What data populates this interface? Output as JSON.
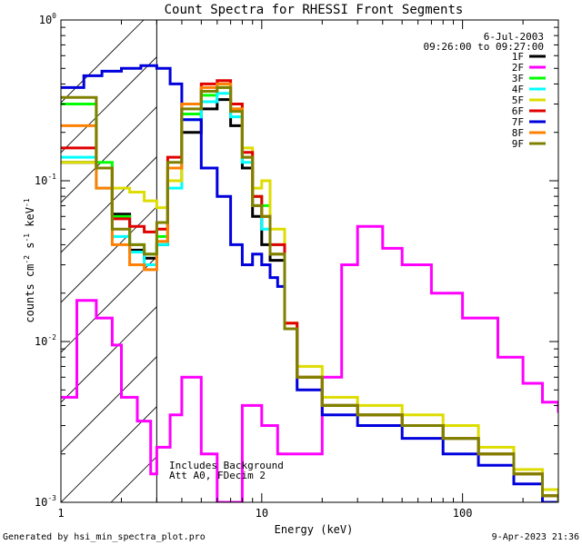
{
  "chart_data": {
    "type": "line",
    "title": "Count Spectra for RHESSI Front Segments",
    "xlabel": "Energy (keV)",
    "ylabel_parts": [
      "counts cm",
      "-2",
      " s",
      "-1",
      " keV",
      "-1"
    ],
    "x_scale": "log",
    "y_scale": "log",
    "xlim": [
      1,
      300
    ],
    "ylim": [
      0.001,
      1
    ],
    "x_ticks": [
      {
        "value": 1,
        "label": "1"
      },
      {
        "value": 10,
        "label": "10"
      },
      {
        "value": 100,
        "label": "100"
      }
    ],
    "y_ticks": [
      {
        "value": 1,
        "base": "10",
        "exp": "0"
      },
      {
        "value": 0.1,
        "base": "10",
        "exp": "-1"
      },
      {
        "value": 0.01,
        "base": "10",
        "exp": "-2"
      },
      {
        "value": 0.001,
        "base": "10",
        "exp": "-3"
      }
    ],
    "hatched_region": [
      1,
      3
    ],
    "legend_position": "top-right",
    "date": "6-Jul-2003",
    "time_range": "09:26:00 to 09:27:00",
    "annotations": [
      "Includes Background",
      "Att A0, FDecim 2"
    ],
    "footer_left": "Generated by hsi_min_spectra_plot.pro",
    "footer_right": "9-Apr-2023 21:36",
    "series": [
      {
        "name": "1F",
        "color": "#000000",
        "points": [
          [
            1,
            0.13
          ],
          [
            1.5,
            0.12
          ],
          [
            1.8,
            0.062
          ],
          [
            2.2,
            0.037
          ],
          [
            2.6,
            0.033
          ],
          [
            3,
            0.04
          ],
          [
            3.4,
            0.1
          ],
          [
            4,
            0.2
          ],
          [
            5,
            0.28
          ],
          [
            6,
            0.32
          ],
          [
            7,
            0.22
          ],
          [
            8,
            0.12
          ],
          [
            9,
            0.06
          ],
          [
            10,
            0.04
          ],
          [
            11,
            0.032
          ],
          [
            13,
            0.012
          ],
          [
            15,
            0.006
          ],
          [
            20,
            0.004
          ],
          [
            30,
            0.0035
          ],
          [
            50,
            0.003
          ],
          [
            80,
            0.0025
          ],
          [
            120,
            0.002
          ],
          [
            180,
            0.0015
          ],
          [
            250,
            0.0011
          ],
          [
            300,
            0.001
          ]
        ]
      },
      {
        "name": "2F",
        "color": "#ff00ff",
        "points": [
          [
            1,
            0.0045
          ],
          [
            1.2,
            0.018
          ],
          [
            1.5,
            0.014
          ],
          [
            1.8,
            0.0095
          ],
          [
            2,
            0.0045
          ],
          [
            2.4,
            0.0032
          ],
          [
            2.8,
            0.0015
          ],
          [
            3,
            0.0022
          ],
          [
            3.5,
            0.0035
          ],
          [
            4,
            0.006
          ],
          [
            5,
            0.002
          ],
          [
            6,
            0.001
          ],
          [
            8,
            0.004
          ],
          [
            10,
            0.003
          ],
          [
            12,
            0.002
          ],
          [
            15,
            0.002
          ],
          [
            20,
            0.006
          ],
          [
            25,
            0.03
          ],
          [
            30,
            0.052
          ],
          [
            40,
            0.038
          ],
          [
            50,
            0.03
          ],
          [
            70,
            0.02
          ],
          [
            100,
            0.014
          ],
          [
            150,
            0.008
          ],
          [
            200,
            0.0055
          ],
          [
            250,
            0.0042
          ],
          [
            300,
            0.0036
          ]
        ]
      },
      {
        "name": "3F",
        "color": "#00ff00",
        "points": [
          [
            1,
            0.3
          ],
          [
            1.5,
            0.13
          ],
          [
            1.8,
            0.06
          ],
          [
            2.2,
            0.04
          ],
          [
            2.6,
            0.035
          ],
          [
            3,
            0.045
          ],
          [
            3.4,
            0.12
          ],
          [
            4,
            0.26
          ],
          [
            5,
            0.34
          ],
          [
            6,
            0.38
          ],
          [
            7,
            0.28
          ],
          [
            8,
            0.14
          ],
          [
            9,
            0.08
          ],
          [
            10,
            0.07
          ],
          [
            11,
            0.04
          ],
          [
            13,
            0.012
          ],
          [
            15,
            0.006
          ],
          [
            20,
            0.004
          ],
          [
            30,
            0.0035
          ],
          [
            50,
            0.003
          ],
          [
            80,
            0.0025
          ],
          [
            120,
            0.002
          ],
          [
            180,
            0.0015
          ],
          [
            250,
            0.0011
          ],
          [
            300,
            0.001
          ]
        ]
      },
      {
        "name": "4F",
        "color": "#00ffff",
        "points": [
          [
            1,
            0.14
          ],
          [
            1.5,
            0.09
          ],
          [
            1.8,
            0.045
          ],
          [
            2.2,
            0.036
          ],
          [
            2.6,
            0.03
          ],
          [
            3,
            0.04
          ],
          [
            3.4,
            0.09
          ],
          [
            4,
            0.24
          ],
          [
            5,
            0.31
          ],
          [
            6,
            0.35
          ],
          [
            7,
            0.25
          ],
          [
            8,
            0.13
          ],
          [
            9,
            0.07
          ],
          [
            10,
            0.05
          ],
          [
            11,
            0.035
          ],
          [
            13,
            0.012
          ],
          [
            15,
            0.006
          ],
          [
            20,
            0.004
          ],
          [
            30,
            0.0035
          ],
          [
            50,
            0.003
          ],
          [
            80,
            0.0025
          ],
          [
            120,
            0.002
          ],
          [
            180,
            0.0015
          ],
          [
            250,
            0.0011
          ],
          [
            300,
            0.001
          ]
        ]
      },
      {
        "name": "5F",
        "color": "#dddd00",
        "points": [
          [
            1,
            0.13
          ],
          [
            1.5,
            0.12
          ],
          [
            1.8,
            0.09
          ],
          [
            2.2,
            0.085
          ],
          [
            2.6,
            0.075
          ],
          [
            3,
            0.068
          ],
          [
            3.4,
            0.1
          ],
          [
            4,
            0.3
          ],
          [
            5,
            0.36
          ],
          [
            6,
            0.38
          ],
          [
            7,
            0.3
          ],
          [
            8,
            0.16
          ],
          [
            9,
            0.09
          ],
          [
            10,
            0.1
          ],
          [
            11,
            0.05
          ],
          [
            13,
            0.013
          ],
          [
            15,
            0.007
          ],
          [
            20,
            0.0045
          ],
          [
            30,
            0.004
          ],
          [
            50,
            0.0035
          ],
          [
            80,
            0.003
          ],
          [
            120,
            0.0022
          ],
          [
            180,
            0.0016
          ],
          [
            250,
            0.0012
          ],
          [
            300,
            0.001
          ]
        ]
      },
      {
        "name": "6F",
        "color": "#e00000",
        "points": [
          [
            1,
            0.16
          ],
          [
            1.5,
            0.12
          ],
          [
            1.8,
            0.058
          ],
          [
            2.2,
            0.052
          ],
          [
            2.6,
            0.048
          ],
          [
            3,
            0.05
          ],
          [
            3.4,
            0.14
          ],
          [
            4,
            0.3
          ],
          [
            5,
            0.4
          ],
          [
            6,
            0.42
          ],
          [
            7,
            0.3
          ],
          [
            8,
            0.15
          ],
          [
            9,
            0.08
          ],
          [
            10,
            0.06
          ],
          [
            11,
            0.04
          ],
          [
            13,
            0.013
          ],
          [
            15,
            0.006
          ],
          [
            20,
            0.004
          ],
          [
            30,
            0.0035
          ],
          [
            50,
            0.003
          ],
          [
            80,
            0.0025
          ],
          [
            120,
            0.002
          ],
          [
            180,
            0.0015
          ],
          [
            250,
            0.0011
          ],
          [
            300,
            0.001
          ]
        ]
      },
      {
        "name": "7F",
        "color": "#0000dd",
        "points": [
          [
            1,
            0.38
          ],
          [
            1.3,
            0.45
          ],
          [
            1.6,
            0.48
          ],
          [
            2,
            0.5
          ],
          [
            2.5,
            0.52
          ],
          [
            3,
            0.5
          ],
          [
            3.5,
            0.4
          ],
          [
            4,
            0.24
          ],
          [
            5,
            0.12
          ],
          [
            6,
            0.08
          ],
          [
            7,
            0.04
          ],
          [
            8,
            0.03
          ],
          [
            9,
            0.035
          ],
          [
            10,
            0.03
          ],
          [
            11,
            0.025
          ],
          [
            12,
            0.022
          ],
          [
            13,
            0.012
          ],
          [
            15,
            0.005
          ],
          [
            20,
            0.0035
          ],
          [
            30,
            0.003
          ],
          [
            50,
            0.0025
          ],
          [
            80,
            0.002
          ],
          [
            120,
            0.0017
          ],
          [
            180,
            0.0013
          ],
          [
            250,
            0.001
          ],
          [
            300,
            0.001
          ]
        ]
      },
      {
        "name": "8F",
        "color": "#ff8000",
        "points": [
          [
            1,
            0.22
          ],
          [
            1.5,
            0.09
          ],
          [
            1.8,
            0.04
          ],
          [
            2.2,
            0.03
          ],
          [
            2.6,
            0.028
          ],
          [
            3,
            0.042
          ],
          [
            3.4,
            0.12
          ],
          [
            4,
            0.3
          ],
          [
            5,
            0.38
          ],
          [
            6,
            0.4
          ],
          [
            7,
            0.28
          ],
          [
            8,
            0.14
          ],
          [
            9,
            0.07
          ],
          [
            10,
            0.06
          ],
          [
            11,
            0.035
          ],
          [
            13,
            0.012
          ],
          [
            15,
            0.006
          ],
          [
            20,
            0.004
          ],
          [
            30,
            0.0035
          ],
          [
            50,
            0.003
          ],
          [
            80,
            0.0025
          ],
          [
            120,
            0.002
          ],
          [
            180,
            0.0015
          ],
          [
            250,
            0.0011
          ],
          [
            300,
            0.001
          ]
        ]
      },
      {
        "name": "9F",
        "color": "#808000",
        "points": [
          [
            1,
            0.33
          ],
          [
            1.5,
            0.12
          ],
          [
            1.8,
            0.05
          ],
          [
            2.2,
            0.04
          ],
          [
            2.6,
            0.035
          ],
          [
            3,
            0.055
          ],
          [
            3.4,
            0.13
          ],
          [
            4,
            0.28
          ],
          [
            5,
            0.36
          ],
          [
            6,
            0.38
          ],
          [
            7,
            0.27
          ],
          [
            8,
            0.14
          ],
          [
            9,
            0.07
          ],
          [
            10,
            0.06
          ],
          [
            11,
            0.035
          ],
          [
            13,
            0.012
          ],
          [
            15,
            0.006
          ],
          [
            20,
            0.004
          ],
          [
            30,
            0.0035
          ],
          [
            50,
            0.003
          ],
          [
            80,
            0.0025
          ],
          [
            120,
            0.002
          ],
          [
            180,
            0.0015
          ],
          [
            250,
            0.0011
          ],
          [
            300,
            0.001
          ]
        ]
      }
    ]
  }
}
